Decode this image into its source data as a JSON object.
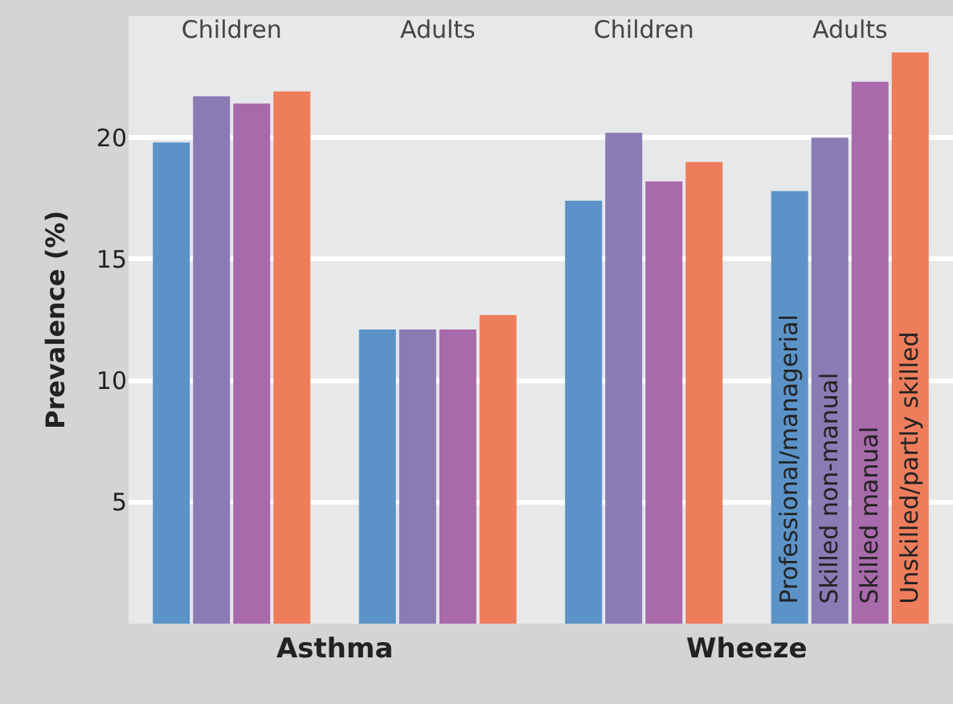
{
  "chart_data": {
    "type": "bar",
    "ylabel": "Prevalence (%)",
    "categories": [
      "Children",
      "Adults",
      "Children",
      "Adults"
    ],
    "annotations": [
      "Asthma",
      "Wheeze"
    ],
    "series": [
      {
        "name": "Professional/managerial",
        "color": "#5b93c9",
        "values": [
          19.8,
          12.1,
          17.4,
          17.8
        ]
      },
      {
        "name": "Skilled non-manual",
        "color": "#8a7bb5",
        "values": [
          21.7,
          12.1,
          20.2,
          20.0
        ]
      },
      {
        "name": "Skilled manual",
        "color": "#a86aab",
        "values": [
          21.4,
          12.1,
          18.2,
          22.3
        ]
      },
      {
        "name": "Unskilled/partly skilled",
        "color": "#ee7d5c",
        "values": [
          21.9,
          12.7,
          19.0,
          23.5
        ]
      }
    ],
    "ylim": [
      0,
      25
    ],
    "yticks": [
      5,
      10,
      15,
      20
    ],
    "grid": "y",
    "legend": false
  }
}
